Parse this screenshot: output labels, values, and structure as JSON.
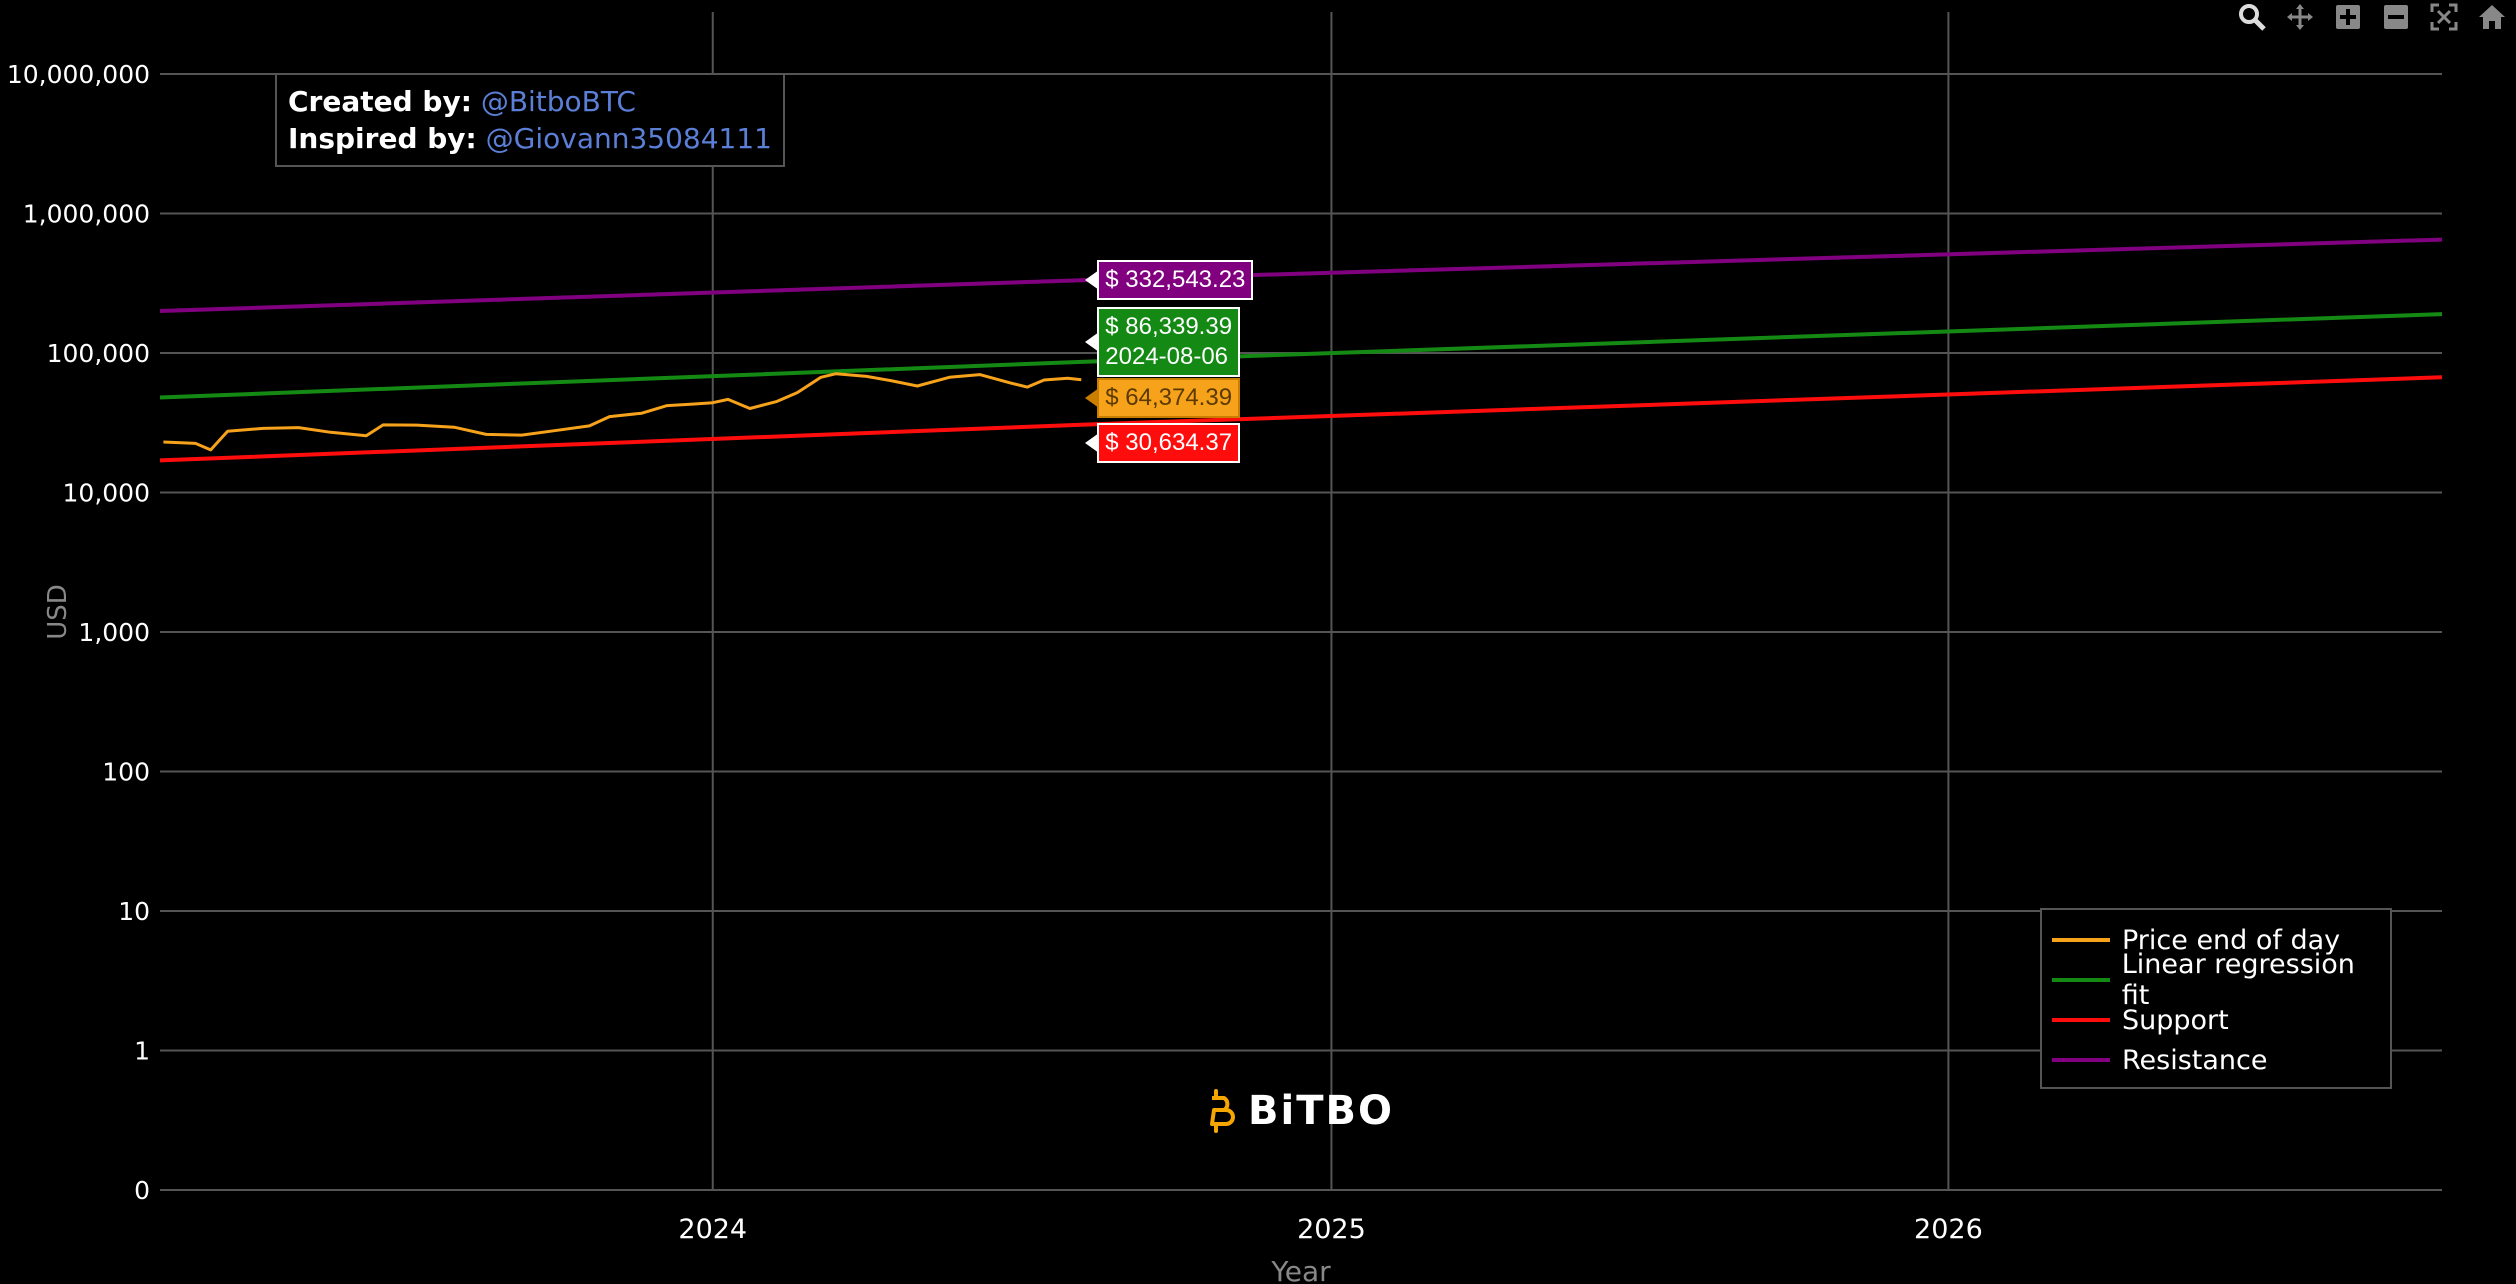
{
  "modebar": {
    "buttons": [
      {
        "name": "zoom-icon"
      },
      {
        "name": "pan-icon"
      },
      {
        "name": "zoom-in-icon"
      },
      {
        "name": "zoom-out-icon"
      },
      {
        "name": "autoscale-icon"
      },
      {
        "name": "reset-axes-icon"
      }
    ]
  },
  "credits": {
    "created_label": "Created by:",
    "created_value": "@BitboBTC",
    "inspired_label": "Inspired by:",
    "inspired_value": "@Giovann35084111"
  },
  "logo": {
    "text": "BiTBO",
    "color": "#f7a600"
  },
  "tooltips": {
    "resistance": "$ 332,543.23",
    "fit": "$ 86,339.39",
    "date": "2024-08-06",
    "price": "$ 64,374.39",
    "support": "$ 30,634.37"
  },
  "chart_data": {
    "type": "line",
    "xlabel": "Year",
    "ylabel": "USD",
    "yscale": "log",
    "xlim": [
      "2023-02-08",
      "2026-10-20"
    ],
    "ylim": [
      0,
      10000000
    ],
    "x_ticks": [
      "2024",
      "2025",
      "2026"
    ],
    "y_ticks": [
      "10,000,000",
      "1,000,000",
      "100,000",
      "10,000",
      "1,000",
      "100",
      "10",
      "1",
      "0"
    ],
    "grid": true,
    "legend_position": "bottom-right",
    "hover_date": "2024-08-06",
    "series": [
      {
        "name": "Price end of day",
        "color": "#f7a21b",
        "x": [
          "2023-02-10",
          "2023-03-01",
          "2023-03-10",
          "2023-03-20",
          "2023-04-10",
          "2023-05-01",
          "2023-05-20",
          "2023-06-10",
          "2023-06-20",
          "2023-07-10",
          "2023-08-01",
          "2023-08-20",
          "2023-09-10",
          "2023-10-01",
          "2023-10-20",
          "2023-11-01",
          "2023-11-20",
          "2023-12-05",
          "2023-12-20",
          "2024-01-01",
          "2024-01-10",
          "2024-01-23",
          "2024-02-08",
          "2024-02-20",
          "2024-03-05",
          "2024-03-14",
          "2024-04-01",
          "2024-04-15",
          "2024-05-01",
          "2024-05-20",
          "2024-06-07",
          "2024-06-25",
          "2024-07-05",
          "2024-07-15",
          "2024-07-29",
          "2024-08-06"
        ],
        "values": [
          23000,
          22500,
          20200,
          27500,
          28800,
          29200,
          27000,
          25500,
          30500,
          30400,
          29400,
          26100,
          25800,
          27900,
          30000,
          35000,
          37000,
          42000,
          43000,
          44000,
          46500,
          40000,
          45000,
          52000,
          67000,
          71000,
          68000,
          63500,
          58000,
          67000,
          70000,
          61000,
          57000,
          64000,
          66000,
          64374
        ]
      },
      {
        "name": "Linear regression fit",
        "color": "#148a14",
        "x": [
          "2023-02-08",
          "2024-08-06",
          "2026-10-20"
        ],
        "values": [
          48000,
          86339,
          190000
        ]
      },
      {
        "name": "Support",
        "color": "#ff0d0d",
        "x": [
          "2023-02-08",
          "2024-08-06",
          "2026-10-20"
        ],
        "values": [
          17000,
          30634,
          67000
        ]
      },
      {
        "name": "Resistance",
        "color": "#800080",
        "x": [
          "2023-02-08",
          "2024-08-06",
          "2026-10-20"
        ],
        "values": [
          200000,
          332543,
          650000
        ]
      }
    ]
  }
}
